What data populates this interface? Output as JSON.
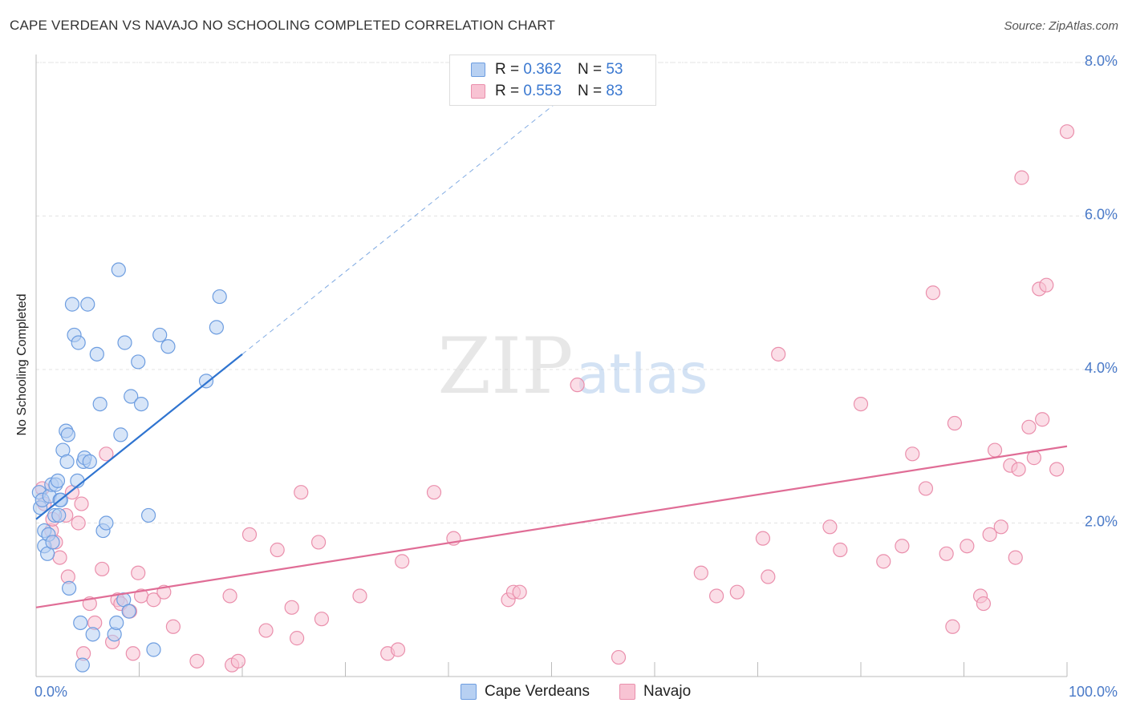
{
  "title": "CAPE VERDEAN VS NAVAJO NO SCHOOLING COMPLETED CORRELATION CHART",
  "source": "Source: ZipAtlas.com",
  "watermark": {
    "zip": "ZIP",
    "atlas": "atlas"
  },
  "legend": {
    "rows": [
      {
        "r_label": "R =",
        "r_value": "0.362",
        "n_label": "N =",
        "n_value": "53"
      },
      {
        "r_label": "R =",
        "r_value": "0.553",
        "n_label": "N =",
        "n_value": "83"
      }
    ]
  },
  "bottom_legend": {
    "series_1": "Cape Verdeans",
    "series_2": "Navajo"
  },
  "colors": {
    "blue_fill": "#b7d0f2",
    "blue_stroke": "#6d9de0",
    "blue_line": "#2f74d0",
    "pink_fill": "#f8c3d3",
    "pink_stroke": "#ea8fac",
    "pink_line": "#e06d96",
    "tick_text": "#4a7ac8",
    "grid": "#e3e3e3"
  },
  "chart_data": {
    "type": "scatter",
    "xlabel": "",
    "ylabel": "No Schooling Completed",
    "xlim": [
      0,
      100
    ],
    "ylim": [
      0,
      8.0
    ],
    "x_tick_labels": [
      "0.0%",
      "100.0%"
    ],
    "y_ticks": [
      2.0,
      4.0,
      6.0,
      8.0
    ],
    "y_tick_labels": [
      "2.0%",
      "4.0%",
      "6.0%",
      "8.0%"
    ],
    "grid": "horizontal dashed",
    "series": [
      {
        "name": "Cape Verdeans",
        "trend": {
          "x0": 0,
          "y0": 2.05,
          "x1": 20,
          "y1": 4.2,
          "dashed_to_x": 53
        },
        "points": [
          [
            0.3,
            2.4
          ],
          [
            0.4,
            2.2
          ],
          [
            0.6,
            2.3
          ],
          [
            0.8,
            1.7
          ],
          [
            0.8,
            1.9
          ],
          [
            1.1,
            1.6
          ],
          [
            1.2,
            1.85
          ],
          [
            1.3,
            2.35
          ],
          [
            1.5,
            2.5
          ],
          [
            1.6,
            1.75
          ],
          [
            1.8,
            2.1
          ],
          [
            1.9,
            2.5
          ],
          [
            2.1,
            2.55
          ],
          [
            2.2,
            2.1
          ],
          [
            2.3,
            2.3
          ],
          [
            2.4,
            2.3
          ],
          [
            2.6,
            2.95
          ],
          [
            2.9,
            3.2
          ],
          [
            3.1,
            3.15
          ],
          [
            3.2,
            1.15
          ],
          [
            3.5,
            4.85
          ],
          [
            3.7,
            4.45
          ],
          [
            4.1,
            4.35
          ],
          [
            4.0,
            2.55
          ],
          [
            4.3,
            0.7
          ],
          [
            4.6,
            2.8
          ],
          [
            4.7,
            2.85
          ],
          [
            5.0,
            4.85
          ],
          [
            5.5,
            0.55
          ],
          [
            5.9,
            4.2
          ],
          [
            6.2,
            3.55
          ],
          [
            6.5,
            1.9
          ],
          [
            7.6,
            0.55
          ],
          [
            7.8,
            0.7
          ],
          [
            8.0,
            5.3
          ],
          [
            8.2,
            3.15
          ],
          [
            8.5,
            1.0
          ],
          [
            8.6,
            4.35
          ],
          [
            9.0,
            0.85
          ],
          [
            9.2,
            3.65
          ],
          [
            9.9,
            4.1
          ],
          [
            10.2,
            3.55
          ],
          [
            10.9,
            2.1
          ],
          [
            11.4,
            0.35
          ],
          [
            12.0,
            4.45
          ],
          [
            12.8,
            4.3
          ],
          [
            16.5,
            3.85
          ],
          [
            17.5,
            4.55
          ],
          [
            17.8,
            4.95
          ],
          [
            4.5,
            0.15
          ],
          [
            5.2,
            2.8
          ],
          [
            3.0,
            2.8
          ],
          [
            6.8,
            2.0
          ]
        ]
      },
      {
        "name": "Navajo",
        "trend": {
          "x0": 0,
          "y0": 0.9,
          "x1": 100,
          "y1": 3.0
        },
        "points": [
          [
            0.6,
            2.45
          ],
          [
            0.8,
            2.25
          ],
          [
            1.5,
            1.9
          ],
          [
            1.6,
            2.05
          ],
          [
            1.9,
            1.75
          ],
          [
            2.3,
            1.55
          ],
          [
            2.9,
            2.1
          ],
          [
            3.1,
            1.3
          ],
          [
            3.5,
            2.4
          ],
          [
            4.1,
            2.0
          ],
          [
            4.4,
            2.25
          ],
          [
            4.6,
            0.3
          ],
          [
            5.2,
            0.95
          ],
          [
            5.7,
            0.7
          ],
          [
            6.4,
            1.4
          ],
          [
            6.8,
            2.9
          ],
          [
            7.4,
            0.45
          ],
          [
            7.9,
            1.0
          ],
          [
            8.2,
            0.95
          ],
          [
            9.1,
            0.85
          ],
          [
            9.4,
            0.3
          ],
          [
            9.9,
            1.35
          ],
          [
            10.2,
            1.05
          ],
          [
            11.4,
            1.0
          ],
          [
            12.4,
            1.1
          ],
          [
            13.3,
            0.65
          ],
          [
            15.6,
            0.2
          ],
          [
            18.8,
            1.05
          ],
          [
            19.0,
            0.15
          ],
          [
            19.6,
            0.2
          ],
          [
            20.7,
            1.85
          ],
          [
            22.3,
            0.6
          ],
          [
            23.4,
            1.65
          ],
          [
            24.8,
            0.9
          ],
          [
            25.3,
            0.5
          ],
          [
            25.7,
            2.4
          ],
          [
            27.4,
            1.75
          ],
          [
            27.7,
            0.75
          ],
          [
            31.4,
            1.05
          ],
          [
            34.1,
            0.3
          ],
          [
            35.1,
            0.35
          ],
          [
            35.5,
            1.5
          ],
          [
            38.6,
            2.4
          ],
          [
            40.5,
            1.8
          ],
          [
            45.8,
            1.0
          ],
          [
            46.3,
            1.1
          ],
          [
            46.9,
            1.1
          ],
          [
            52.5,
            3.8
          ],
          [
            56.5,
            0.25
          ],
          [
            64.5,
            1.35
          ],
          [
            66.0,
            1.05
          ],
          [
            68.0,
            1.1
          ],
          [
            70.5,
            1.8
          ],
          [
            71.0,
            1.3
          ],
          [
            72.0,
            4.2
          ],
          [
            77.0,
            1.95
          ],
          [
            78.0,
            1.65
          ],
          [
            80.0,
            3.55
          ],
          [
            82.2,
            1.5
          ],
          [
            84.0,
            1.7
          ],
          [
            85.0,
            2.9
          ],
          [
            86.3,
            2.45
          ],
          [
            87.0,
            5.0
          ],
          [
            88.3,
            1.6
          ],
          [
            88.9,
            0.65
          ],
          [
            89.1,
            3.3
          ],
          [
            90.3,
            1.7
          ],
          [
            91.6,
            1.05
          ],
          [
            91.9,
            0.95
          ],
          [
            92.5,
            1.85
          ],
          [
            93.0,
            2.95
          ],
          [
            93.6,
            1.95
          ],
          [
            94.5,
            2.75
          ],
          [
            95.0,
            1.55
          ],
          [
            95.3,
            2.7
          ],
          [
            95.6,
            6.5
          ],
          [
            96.3,
            3.25
          ],
          [
            96.8,
            2.85
          ],
          [
            97.3,
            5.05
          ],
          [
            97.6,
            3.35
          ],
          [
            98.0,
            5.1
          ],
          [
            99.0,
            2.7
          ],
          [
            100.0,
            7.1
          ]
        ]
      }
    ]
  }
}
